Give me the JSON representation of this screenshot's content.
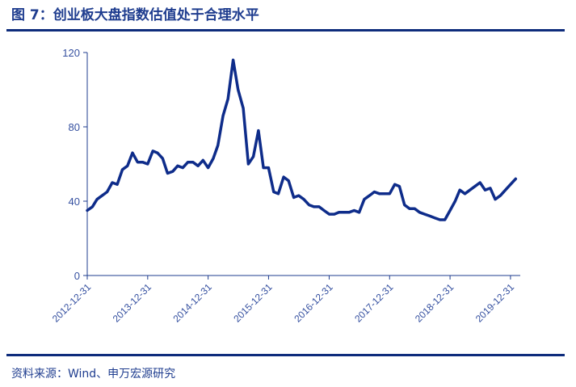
{
  "header": {
    "title": "图 7：创业板大盘指数估值处于合理水平"
  },
  "footer": {
    "source": "资料来源：Wind、申万宏源研究"
  },
  "colors": {
    "line": "#0e2c8a",
    "axis": "#1f3d8f",
    "rule": "#0e2c7c",
    "text": "#1f3d8f"
  },
  "chart_data": {
    "type": "line",
    "title": "",
    "xlabel": "",
    "ylabel": "",
    "ylim": [
      0,
      120
    ],
    "xlim": [
      "2012-12-31",
      "2020-02-28"
    ],
    "grid": false,
    "yticks": [
      0,
      40,
      80,
      120
    ],
    "xticks": [
      "2012-12-31",
      "2013-12-31",
      "2014-12-31",
      "2015-12-31",
      "2016-12-31",
      "2017-12-31",
      "2018-12-31",
      "2019-12-31"
    ],
    "series": [
      {
        "name": "",
        "color": "#0e2c8a",
        "points": [
          [
            "2012-12-31",
            35
          ],
          [
            "2013-01-31",
            37
          ],
          [
            "2013-02-28",
            41
          ],
          [
            "2013-03-31",
            43
          ],
          [
            "2013-04-30",
            45
          ],
          [
            "2013-05-31",
            50
          ],
          [
            "2013-06-30",
            49
          ],
          [
            "2013-07-31",
            57
          ],
          [
            "2013-08-31",
            59
          ],
          [
            "2013-09-30",
            66
          ],
          [
            "2013-10-31",
            61
          ],
          [
            "2013-11-30",
            61
          ],
          [
            "2013-12-31",
            60
          ],
          [
            "2014-01-31",
            67
          ],
          [
            "2014-02-28",
            66
          ],
          [
            "2014-03-31",
            63
          ],
          [
            "2014-04-30",
            55
          ],
          [
            "2014-05-31",
            56
          ],
          [
            "2014-06-30",
            59
          ],
          [
            "2014-07-31",
            58
          ],
          [
            "2014-08-31",
            61
          ],
          [
            "2014-09-30",
            61
          ],
          [
            "2014-10-31",
            59
          ],
          [
            "2014-11-30",
            62
          ],
          [
            "2014-12-31",
            58
          ],
          [
            "2015-01-31",
            63
          ],
          [
            "2015-02-28",
            70
          ],
          [
            "2015-03-31",
            86
          ],
          [
            "2015-04-30",
            95
          ],
          [
            "2015-05-31",
            116
          ],
          [
            "2015-06-30",
            100
          ],
          [
            "2015-07-31",
            90
          ],
          [
            "2015-08-31",
            60
          ],
          [
            "2015-09-30",
            64
          ],
          [
            "2015-10-31",
            78
          ],
          [
            "2015-11-30",
            58
          ],
          [
            "2015-12-31",
            58
          ],
          [
            "2016-01-31",
            45
          ],
          [
            "2016-02-28",
            44
          ],
          [
            "2016-03-31",
            53
          ],
          [
            "2016-04-30",
            51
          ],
          [
            "2016-05-31",
            42
          ],
          [
            "2016-06-30",
            43
          ],
          [
            "2016-07-31",
            41
          ],
          [
            "2016-08-31",
            38
          ],
          [
            "2016-09-30",
            37
          ],
          [
            "2016-10-31",
            37
          ],
          [
            "2016-11-30",
            35
          ],
          [
            "2016-12-31",
            33
          ],
          [
            "2017-01-31",
            33
          ],
          [
            "2017-02-28",
            34
          ],
          [
            "2017-03-31",
            34
          ],
          [
            "2017-04-30",
            34
          ],
          [
            "2017-05-31",
            35
          ],
          [
            "2017-06-30",
            34
          ],
          [
            "2017-07-31",
            41
          ],
          [
            "2017-08-31",
            43
          ],
          [
            "2017-09-30",
            45
          ],
          [
            "2017-10-31",
            44
          ],
          [
            "2017-11-30",
            44
          ],
          [
            "2017-12-31",
            44
          ],
          [
            "2018-01-31",
            49
          ],
          [
            "2018-02-28",
            48
          ],
          [
            "2018-03-31",
            38
          ],
          [
            "2018-04-30",
            36
          ],
          [
            "2018-05-31",
            36
          ],
          [
            "2018-06-30",
            34
          ],
          [
            "2018-07-31",
            33
          ],
          [
            "2018-08-31",
            32
          ],
          [
            "2018-09-30",
            31
          ],
          [
            "2018-10-31",
            30
          ],
          [
            "2018-11-30",
            30
          ],
          [
            "2018-12-31",
            35
          ],
          [
            "2019-01-31",
            40
          ],
          [
            "2019-02-28",
            46
          ],
          [
            "2019-03-31",
            44
          ],
          [
            "2019-04-30",
            46
          ],
          [
            "2019-05-31",
            48
          ],
          [
            "2019-06-30",
            50
          ],
          [
            "2019-07-31",
            46
          ],
          [
            "2019-08-31",
            47
          ],
          [
            "2019-09-30",
            41
          ],
          [
            "2019-10-31",
            43
          ],
          [
            "2019-11-30",
            46
          ],
          [
            "2019-12-31",
            49
          ],
          [
            "2020-01-31",
            52
          ]
        ]
      }
    ]
  }
}
